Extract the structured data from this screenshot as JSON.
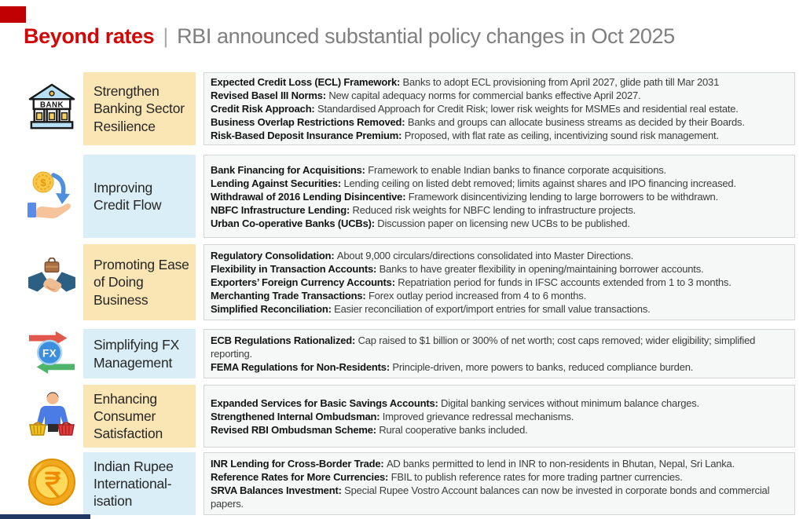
{
  "header": {
    "title_highlight": "Beyond rates",
    "title_separator": "|",
    "title_rest": "RBI announced substantial policy changes in Oct 2025"
  },
  "palette": {
    "accent_red": "#C00000",
    "title_red": "#D40707",
    "title_gray": "#7F7F7F",
    "label_yellow": "#FAE5B5",
    "label_blue": "#D9EEF6",
    "content_bg": "#F6F7F7",
    "content_border": "#D4D6D6",
    "bottom_bar_navy": "#1F3864"
  },
  "rows": [
    {
      "icon": "bank-building-icon",
      "label": "Strengthen Banking Sector Resilience",
      "label_bg": "#FAE5B5",
      "items": [
        {
          "term": "Expected Credit Loss (ECL) Framework:",
          "desc": "Banks to adopt ECL provisioning from April 2027, glide path till Mar 2031"
        },
        {
          "term": "Revised Basel III Norms:",
          "desc": "New capital adequacy norms for commercial banks effective April 2027."
        },
        {
          "term": "Credit Risk Approach:",
          "desc": "Standardised Approach for Credit Risk; lower risk weights for MSMEs and residential real estate."
        },
        {
          "term": "Business Overlap Restrictions Removed:",
          "desc": "Banks and groups can allocate business streams as decided by their Boards."
        },
        {
          "term": "Risk-Based Deposit Insurance Premium:",
          "desc": "Proposed, with flat rate as ceiling, incentivizing sound risk management."
        }
      ]
    },
    {
      "icon": "coin-in-hand-icon",
      "label": "Improving Credit Flow",
      "label_bg": "#D9EEF6",
      "items": [
        {
          "term": "Bank Financing for Acquisitions:",
          "desc": "Framework to enable Indian banks to finance corporate acquisitions."
        },
        {
          "term": "Lending Against Securities:",
          "desc": "Lending ceiling on listed debt removed; limits against shares and IPO financing increased."
        },
        {
          "term": "Withdrawal of 2016 Lending Disincentive:",
          "desc": "Framework disincentivizing lending to large borrowers to be withdrawn."
        },
        {
          "term": "NBFC Infrastructure Lending:",
          "desc": "Reduced risk weights for NBFC lending to infrastructure projects."
        },
        {
          "term": "Urban Co-operative Banks (UCBs):",
          "desc": "Discussion paper on licensing new UCBs to be published."
        }
      ]
    },
    {
      "icon": "handshake-icon",
      "label": "Promoting Ease of Doing Business",
      "label_bg": "#FAE5B5",
      "items": [
        {
          "term": "Regulatory Consolidation:",
          "desc": "About 9,000 circulars/directions consolidated into Master Directions."
        },
        {
          "term": "Flexibility in Transaction Accounts:",
          "desc": "Banks to have greater flexibility in opening/maintaining borrower accounts."
        },
        {
          "term": "Exporters’ Foreign Currency Accounts:",
          "desc": "Repatriation period for funds in IFSC accounts extended from 1 to 3 months."
        },
        {
          "term": "Merchanting Trade Transactions:",
          "desc": "Forex outlay period increased from 4 to 6 months."
        },
        {
          "term": "Simplified Reconciliation:",
          "desc": "Easier reconciliation of export/import entries for small value transactions."
        }
      ]
    },
    {
      "icon": "fx-arrows-icon",
      "label": "Simplifying FX Management",
      "label_bg": "#D9EEF6",
      "items": [
        {
          "term": "ECB Regulations Rationalized:",
          "desc": "Cap raised to $1 billion or 300% of net worth; cost caps removed; wider eligibility; simplified reporting."
        },
        {
          "term": "FEMA Regulations for Non-Residents:",
          "desc": "Principle-driven, more powers to banks, reduced compliance burden."
        }
      ]
    },
    {
      "icon": "shopper-baskets-icon",
      "label": "Enhancing Consumer Satisfaction",
      "label_bg": "#FAE5B5",
      "items": [
        {
          "term": "Expanded Services for Basic Savings Accounts:",
          "desc": "Digital banking services without minimum balance charges."
        },
        {
          "term": "Strengthened Internal Ombudsman:",
          "desc": "Improved grievance redressal mechanisms."
        },
        {
          "term": "Revised RBI Ombudsman Scheme:",
          "desc": "Rural cooperative banks included."
        }
      ]
    },
    {
      "icon": "rupee-coin-icon",
      "label": "Indian Rupee International-isation",
      "label_bg": "#D9EEF6",
      "items": [
        {
          "term": "INR Lending for Cross-Border Trade:",
          "desc": "AD banks permitted to lend in INR to non-residents in Bhutan, Nepal, Sri Lanka."
        },
        {
          "term": "Reference Rates for More Currencies:",
          "desc": "FBIL to publish reference rates for more trading partner currencies."
        },
        {
          "term": "SRVA Balances Investment:",
          "desc": "Special Rupee Vostro Account balances can now be invested in corporate bonds and commercial papers."
        }
      ]
    }
  ]
}
